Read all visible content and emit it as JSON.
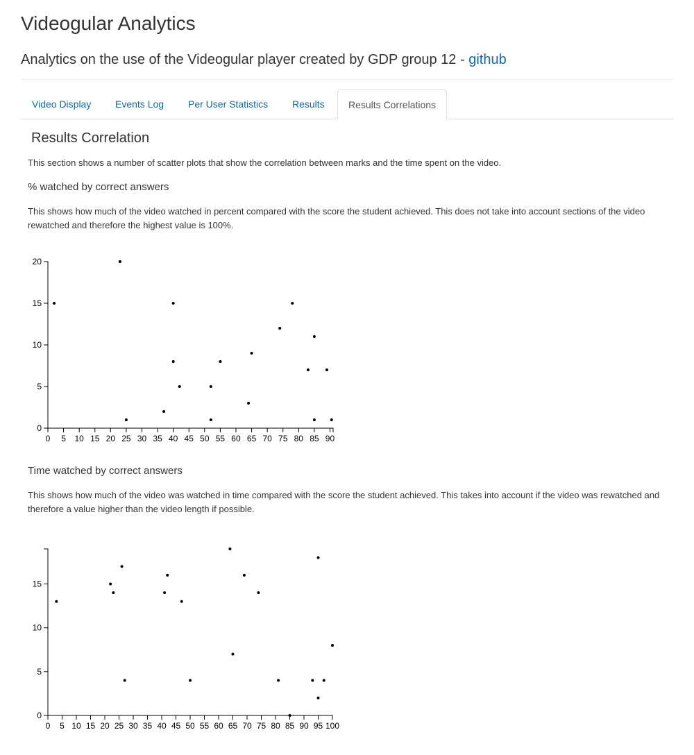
{
  "header": {
    "title": "Videogular Analytics",
    "subtitle": "Analytics on the use of the Videogular player created by GDP group 12 -",
    "subtitle_link": "github"
  },
  "tabs": [
    {
      "label": "Video Display",
      "active": false
    },
    {
      "label": "Events Log",
      "active": false
    },
    {
      "label": "Per User Statistics",
      "active": false
    },
    {
      "label": "Results",
      "active": false
    },
    {
      "label": "Results Correlations",
      "active": true
    }
  ],
  "section": {
    "title": "Results Correlation",
    "intro": "This section shows a number of scatter plots that show the correlation between marks and the time spent on the video.",
    "plot1_heading": "% watched by correct answers",
    "plot1_desc": "This shows how much of the video watched in percent compared with the score the student achieved. This does not take into account sections of the video rewatched and therefore the highest value is 100%.",
    "plot2_heading": "Time watched by correct answers",
    "plot2_desc": "This shows how much of the video was watched in time compared with the score the student achieved. This takes into account if the video was rewatched and therefore a value higher than the video length if possible."
  },
  "chart_data": [
    {
      "type": "scatter",
      "title": "",
      "xlabel": "",
      "ylabel": "",
      "xlim": [
        0,
        91
      ],
      "ylim": [
        0,
        20
      ],
      "xticks": [
        0,
        5,
        10,
        15,
        20,
        25,
        30,
        35,
        40,
        45,
        50,
        55,
        60,
        65,
        70,
        75,
        80,
        85,
        90
      ],
      "yticks": [
        0,
        5,
        10,
        15,
        20
      ],
      "grid": false,
      "points": [
        {
          "x": 2,
          "y": 15
        },
        {
          "x": 23,
          "y": 20
        },
        {
          "x": 25,
          "y": 1
        },
        {
          "x": 37,
          "y": 2
        },
        {
          "x": 40,
          "y": 15
        },
        {
          "x": 40,
          "y": 8
        },
        {
          "x": 42,
          "y": 5
        },
        {
          "x": 52,
          "y": 5
        },
        {
          "x": 52,
          "y": 1
        },
        {
          "x": 55,
          "y": 8
        },
        {
          "x": 64,
          "y": 3
        },
        {
          "x": 65,
          "y": 9
        },
        {
          "x": 74,
          "y": 12
        },
        {
          "x": 78,
          "y": 15
        },
        {
          "x": 83,
          "y": 7
        },
        {
          "x": 85,
          "y": 11
        },
        {
          "x": 85,
          "y": 1
        },
        {
          "x": 89,
          "y": 7
        },
        {
          "x": 90.5,
          "y": 1
        }
      ]
    },
    {
      "type": "scatter",
      "title": "",
      "xlabel": "",
      "ylabel": "",
      "xlim": [
        0,
        100
      ],
      "ylim": [
        0,
        19
      ],
      "xticks": [
        0,
        5,
        10,
        15,
        20,
        25,
        30,
        35,
        40,
        45,
        50,
        55,
        60,
        65,
        70,
        75,
        80,
        85,
        90,
        95,
        100
      ],
      "yticks": [
        0,
        5,
        10,
        15
      ],
      "grid": false,
      "points": [
        {
          "x": 3,
          "y": 13
        },
        {
          "x": 22,
          "y": 15
        },
        {
          "x": 23,
          "y": 14
        },
        {
          "x": 26,
          "y": 17
        },
        {
          "x": 27,
          "y": 4
        },
        {
          "x": 41,
          "y": 14
        },
        {
          "x": 42,
          "y": 16
        },
        {
          "x": 47,
          "y": 13
        },
        {
          "x": 50,
          "y": 4
        },
        {
          "x": 64,
          "y": 19
        },
        {
          "x": 65,
          "y": 7
        },
        {
          "x": 69,
          "y": 16
        },
        {
          "x": 74,
          "y": 14
        },
        {
          "x": 81,
          "y": 4
        },
        {
          "x": 85,
          "y": 0
        },
        {
          "x": 93,
          "y": 4
        },
        {
          "x": 95,
          "y": 18
        },
        {
          "x": 95,
          "y": 2
        },
        {
          "x": 97,
          "y": 4
        },
        {
          "x": 100,
          "y": 8
        }
      ]
    }
  ]
}
